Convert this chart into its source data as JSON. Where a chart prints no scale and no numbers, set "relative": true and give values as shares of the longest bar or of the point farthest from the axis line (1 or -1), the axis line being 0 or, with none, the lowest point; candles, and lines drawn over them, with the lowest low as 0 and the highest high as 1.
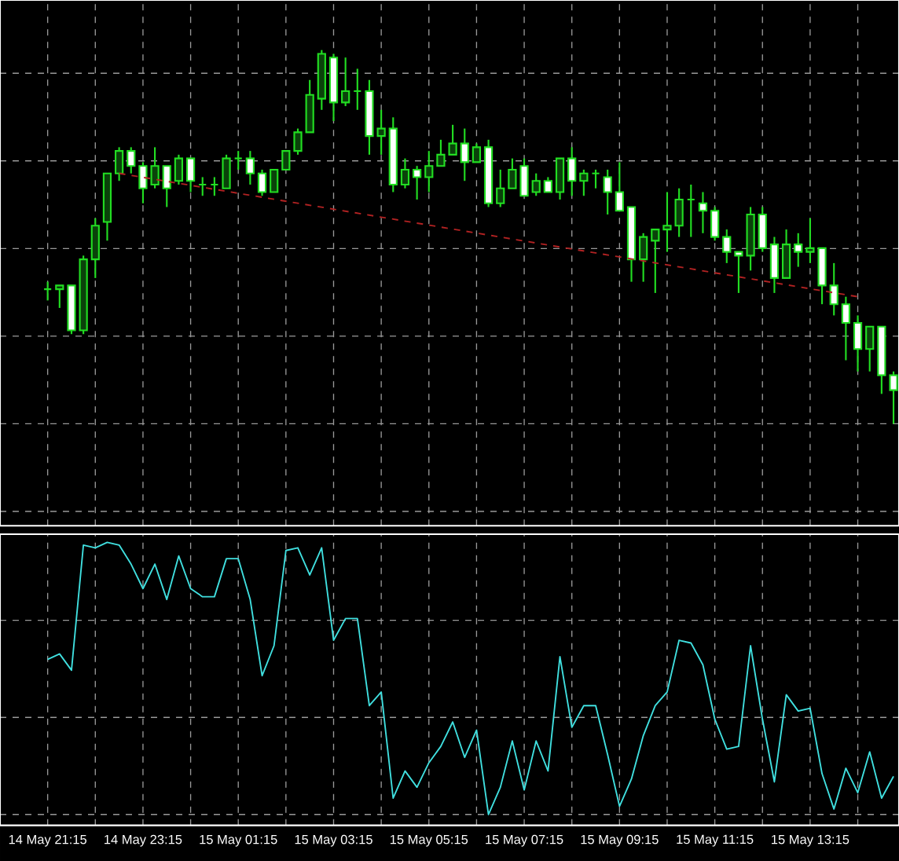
{
  "chart_data": [
    {
      "type": "candlestick",
      "relative": true,
      "grid": true,
      "tick_labels": false,
      "color": "#22dd22",
      "categories": [
        null,
        null,
        null,
        null,
        null,
        null,
        null,
        null,
        null,
        null,
        null,
        null,
        null,
        null,
        null,
        null,
        null,
        null,
        null,
        null,
        null,
        null,
        null,
        null,
        null,
        null,
        null,
        null,
        null,
        null,
        null,
        null,
        null,
        null,
        null,
        null,
        null,
        null,
        null,
        null,
        null,
        null,
        null,
        null,
        null,
        null,
        null,
        null,
        null,
        null,
        null,
        null,
        null,
        null,
        null,
        null,
        null,
        null,
        null,
        null,
        null,
        null,
        null,
        null,
        null,
        null,
        null,
        null,
        null,
        null,
        null,
        null
      ],
      "ohlc": [
        [
          0.36,
          0.38,
          0.33,
          0.36
        ],
        [
          0.36,
          0.37,
          0.31,
          0.37
        ],
        [
          0.37,
          0.37,
          0.24,
          0.25
        ],
        [
          0.25,
          0.45,
          0.24,
          0.44
        ],
        [
          0.44,
          0.55,
          0.39,
          0.53
        ],
        [
          0.54,
          0.67,
          0.49,
          0.67
        ],
        [
          0.67,
          0.74,
          0.65,
          0.73
        ],
        [
          0.73,
          0.74,
          0.67,
          0.69
        ],
        [
          0.69,
          0.7,
          0.59,
          0.63
        ],
        [
          0.64,
          0.74,
          0.63,
          0.69
        ],
        [
          0.69,
          0.69,
          0.58,
          0.63
        ],
        [
          0.65,
          0.72,
          0.64,
          0.71
        ],
        [
          0.71,
          0.71,
          0.62,
          0.65
        ],
        [
          0.64,
          0.66,
          0.61,
          0.64
        ],
        [
          0.64,
          0.66,
          0.61,
          0.64
        ],
        [
          0.63,
          0.72,
          0.63,
          0.71
        ],
        [
          0.71,
          0.73,
          0.68,
          0.71
        ],
        [
          0.71,
          0.73,
          0.64,
          0.67
        ],
        [
          0.67,
          0.68,
          0.61,
          0.62
        ],
        [
          0.62,
          0.68,
          0.62,
          0.68
        ],
        [
          0.68,
          0.73,
          0.68,
          0.73
        ],
        [
          0.73,
          0.79,
          0.72,
          0.78
        ],
        [
          0.78,
          0.92,
          0.78,
          0.88
        ],
        [
          0.87,
          1.0,
          0.84,
          0.99
        ],
        [
          0.98,
          0.99,
          0.81,
          0.86
        ],
        [
          0.86,
          0.98,
          0.85,
          0.89
        ],
        [
          0.89,
          0.95,
          0.84,
          0.89
        ],
        [
          0.89,
          0.92,
          0.72,
          0.77
        ],
        [
          0.77,
          0.84,
          0.72,
          0.79
        ],
        [
          0.79,
          0.82,
          0.62,
          0.64
        ],
        [
          0.64,
          0.71,
          0.63,
          0.68
        ],
        [
          0.68,
          0.69,
          0.6,
          0.66
        ],
        [
          0.66,
          0.73,
          0.62,
          0.69
        ],
        [
          0.69,
          0.76,
          0.69,
          0.72
        ],
        [
          0.72,
          0.8,
          0.72,
          0.75
        ],
        [
          0.75,
          0.79,
          0.65,
          0.7
        ],
        [
          0.7,
          0.75,
          0.7,
          0.74
        ],
        [
          0.74,
          0.76,
          0.58,
          0.59
        ],
        [
          0.59,
          0.68,
          0.58,
          0.63
        ],
        [
          0.63,
          0.71,
          0.63,
          0.68
        ],
        [
          0.69,
          0.71,
          0.61,
          0.61
        ],
        [
          0.62,
          0.67,
          0.61,
          0.65
        ],
        [
          0.65,
          0.66,
          0.62,
          0.62
        ],
        [
          0.62,
          0.71,
          0.6,
          0.71
        ],
        [
          0.71,
          0.74,
          0.61,
          0.65
        ],
        [
          0.65,
          0.68,
          0.61,
          0.67
        ],
        [
          0.67,
          0.68,
          0.63,
          0.67
        ],
        [
          0.66,
          0.68,
          0.56,
          0.62
        ],
        [
          0.62,
          0.7,
          0.57,
          0.57
        ],
        [
          0.58,
          0.58,
          0.38,
          0.44
        ],
        [
          0.44,
          0.51,
          0.38,
          0.5
        ],
        [
          0.49,
          0.52,
          0.35,
          0.52
        ],
        [
          0.52,
          0.62,
          0.46,
          0.53
        ],
        [
          0.53,
          0.63,
          0.5,
          0.6
        ],
        [
          0.6,
          0.64,
          0.5,
          0.6
        ],
        [
          0.59,
          0.62,
          0.51,
          0.57
        ],
        [
          0.57,
          0.58,
          0.49,
          0.5
        ],
        [
          0.5,
          0.52,
          0.43,
          0.46
        ],
        [
          0.46,
          0.46,
          0.35,
          0.45
        ],
        [
          0.45,
          0.58,
          0.41,
          0.56
        ],
        [
          0.56,
          0.58,
          0.46,
          0.47
        ],
        [
          0.48,
          0.5,
          0.35,
          0.39
        ],
        [
          0.39,
          0.52,
          0.39,
          0.48
        ],
        [
          0.48,
          0.51,
          0.42,
          0.46
        ],
        [
          0.46,
          0.55,
          0.43,
          0.47
        ],
        [
          0.47,
          0.47,
          0.32,
          0.37
        ],
        [
          0.37,
          0.43,
          0.29,
          0.32
        ],
        [
          0.32,
          0.34,
          0.17,
          0.27
        ],
        [
          0.27,
          0.29,
          0.14,
          0.2
        ],
        [
          0.2,
          0.26,
          0.14,
          0.26
        ],
        [
          0.26,
          0.26,
          0.08,
          0.13
        ],
        [
          0.13,
          0.14,
          0.0,
          0.09
        ]
      ],
      "series": [
        {
          "type": "line",
          "color": "#b22222",
          "line_style": "dashed",
          "values": [
            null,
            null,
            null,
            null,
            null,
            null,
            0.67,
            null,
            null,
            null,
            null,
            null,
            null,
            null,
            null,
            null,
            null,
            null,
            null,
            null,
            null,
            null,
            null,
            null,
            null,
            null,
            null,
            null,
            null,
            null,
            null,
            null,
            null,
            null,
            null,
            null,
            null,
            null,
            null,
            null,
            null,
            null,
            null,
            null,
            null,
            null,
            null,
            null,
            null,
            null,
            null,
            null,
            null,
            null,
            null,
            null,
            null,
            null,
            null,
            null,
            null,
            null,
            null,
            null,
            null,
            null,
            null,
            null,
            0.34,
            null,
            null,
            null
          ]
        }
      ]
    },
    {
      "type": "line",
      "relative": true,
      "grid": true,
      "tick_labels": "x",
      "color": "#40e0e0",
      "categories": [
        "14 May 21:15",
        null,
        null,
        null,
        null,
        null,
        null,
        null,
        "14 May 23:15",
        null,
        null,
        null,
        null,
        null,
        null,
        null,
        "15 May 01:15",
        null,
        null,
        null,
        null,
        null,
        null,
        null,
        "15 May 03:15",
        null,
        null,
        null,
        null,
        null,
        null,
        null,
        "15 May 05:15",
        null,
        null,
        null,
        null,
        null,
        null,
        null,
        "15 May 07:15",
        null,
        null,
        null,
        null,
        null,
        null,
        null,
        "15 May 09:15",
        null,
        null,
        null,
        null,
        null,
        null,
        null,
        "15 May 11:15",
        null,
        null,
        null,
        null,
        null,
        null,
        null,
        "15 May 13:15",
        null,
        null,
        null,
        null,
        null,
        null,
        null
      ],
      "values": [
        0.57,
        0.59,
        0.53,
        0.99,
        0.98,
        1.0,
        0.99,
        0.92,
        0.83,
        0.92,
        0.79,
        0.95,
        0.83,
        0.8,
        0.8,
        0.94,
        0.94,
        0.79,
        0.51,
        0.62,
        0.97,
        0.98,
        0.88,
        0.98,
        0.64,
        0.72,
        0.72,
        0.4,
        0.45,
        0.06,
        0.16,
        0.1,
        0.19,
        0.25,
        0.34,
        0.21,
        0.31,
        0.0,
        0.1,
        0.27,
        0.09,
        0.27,
        0.16,
        0.58,
        0.32,
        0.4,
        0.4,
        0.22,
        0.03,
        0.13,
        0.29,
        0.4,
        0.45,
        0.64,
        0.63,
        0.55,
        0.35,
        0.24,
        0.25,
        0.62,
        0.35,
        0.12,
        0.44,
        0.38,
        0.39,
        0.15,
        0.02,
        0.17,
        0.08,
        0.23,
        0.06,
        0.14
      ]
    }
  ]
}
